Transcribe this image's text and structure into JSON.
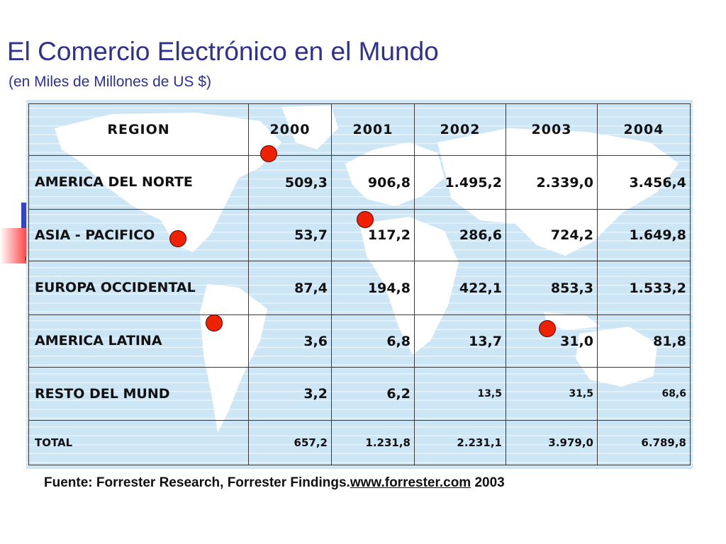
{
  "slide": {
    "title": "El Comercio Electrónico en el Mundo",
    "subtitle": "(en Miles de Millones de US $)"
  },
  "table": {
    "headers": [
      "REGION",
      "2000",
      "2001",
      "2002",
      "2003",
      "2004"
    ],
    "rows": [
      {
        "region": "AMERICA DEL NORTE",
        "values": [
          "509,3",
          "906,8",
          "1.495,2",
          "2.339,0",
          "3.456,4"
        ]
      },
      {
        "region": "ASIA - PACIFICO",
        "values": [
          "53,7",
          "117,2",
          "286,6",
          "724,2",
          "1.649,8"
        ]
      },
      {
        "region": "EUROPA OCCIDENTAL",
        "values": [
          "87,4",
          "194,8",
          "422,1",
          "853,3",
          "1.533,2"
        ]
      },
      {
        "region": "AMERICA LATINA",
        "values": [
          "3,6",
          "6,8",
          "13,7",
          "31,0",
          "81,8"
        ]
      },
      {
        "region": "RESTO DEL MUND",
        "values": [
          "3,2",
          "6,2",
          "13,5",
          "31,5",
          "68,6"
        ]
      },
      {
        "region": "TOTAL",
        "values": [
          "657,2",
          "1.231,8",
          "2.231,1",
          "3.979,0",
          "6.789,8"
        ]
      }
    ]
  },
  "source": {
    "prefix": "Fuente: Forrester Research, Forrester Findings.",
    "link": "www.forrester.com",
    "suffix": " 2003"
  },
  "colors": {
    "title": "#2e3192",
    "table_background": "#cde6f5",
    "map_land": "#ffffff",
    "marker": "#ee2200"
  }
}
